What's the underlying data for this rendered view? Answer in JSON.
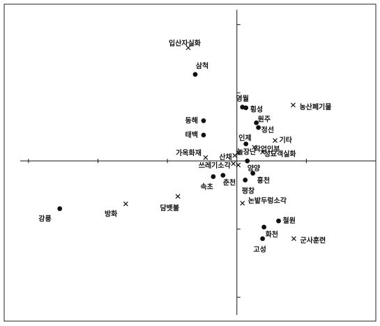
{
  "chart_data": {
    "type": "scatter",
    "title": "",
    "xlabel": "",
    "ylabel": "",
    "xlim": [
      -3.35,
      2.0
    ],
    "ylim": [
      -2.35,
      2.3
    ],
    "grid": false,
    "axes_through_origin": true,
    "series": [
      {
        "marker": "circle",
        "points": [
          {
            "label": "삼척",
            "x": -0.6,
            "y": 1.27
          },
          {
            "label": "영월",
            "x": 0.08,
            "y": 0.79
          },
          {
            "label": "횡성",
            "x": 0.13,
            "y": 0.78
          },
          {
            "label": "원주",
            "x": 0.28,
            "y": 0.56
          },
          {
            "label": "정선",
            "x": 0.31,
            "y": 0.49
          },
          {
            "label": "동해",
            "x": -0.48,
            "y": 0.59
          },
          {
            "label": "태백",
            "x": -0.48,
            "y": 0.38
          },
          {
            "label": "인제",
            "x": 0.13,
            "y": 0.25
          },
          {
            "label": "양양",
            "x": 0.15,
            "y": 0.0
          },
          {
            "label": "춘천",
            "x": -0.2,
            "y": -0.21
          },
          {
            "label": "속초",
            "x": -0.34,
            "y": -0.23
          },
          {
            "label": "홍천",
            "x": 0.23,
            "y": -0.18
          },
          {
            "label": "평창",
            "x": 0.12,
            "y": -0.28
          },
          {
            "label": "강릉",
            "x": -2.55,
            "y": -0.7
          },
          {
            "label": "철원",
            "x": 0.6,
            "y": -0.88
          },
          {
            "label": "화천",
            "x": 0.39,
            "y": -0.97
          },
          {
            "label": "고성",
            "x": 0.37,
            "y": -1.14
          }
        ]
      },
      {
        "marker": "x",
        "points": [
          {
            "label": "입산자실화",
            "x": -0.7,
            "y": 1.66
          },
          {
            "label": "농산폐기물",
            "x": 0.81,
            "y": 0.82
          },
          {
            "label": "기타",
            "x": 0.55,
            "y": 0.3
          },
          {
            "label": "작업인부",
            "x": 0.25,
            "y": 0.2
          },
          {
            "label": "성묘객실화",
            "x": 0.37,
            "y": 0.13
          },
          {
            "label": "놀장난",
            "x": 0.02,
            "y": 0.12
          },
          {
            "label": "가옥화재",
            "x": -0.45,
            "y": 0.05
          },
          {
            "label": "산채",
            "x": -0.03,
            "y": 0.08
          },
          {
            "label": "쓰레기소각",
            "x": -0.05,
            "y": -0.04
          },
          {
            "label": "기타2",
            "x": 0.02,
            "y": -0.06
          },
          {
            "label": "담뱃불",
            "x": -0.85,
            "y": -0.52
          },
          {
            "label": "방화",
            "x": -1.6,
            "y": -0.63
          },
          {
            "label": "논밭두렁소각",
            "x": 0.08,
            "y": -0.62
          },
          {
            "label": "군사훈련",
            "x": 0.82,
            "y": -1.14
          }
        ]
      }
    ],
    "visible_labels": [
      {
        "ref": "입산자실화",
        "text": "입산자실화",
        "anchor": "end",
        "dx": 18,
        "dy": -6
      },
      {
        "ref": "삼척",
        "text": "삼척",
        "anchor": "middle",
        "dx": 10,
        "dy": -12
      },
      {
        "ref": "영월",
        "text": "영월",
        "anchor": "middle",
        "dx": 0,
        "dy": -12
      },
      {
        "ref": "횡성",
        "text": "횡성",
        "anchor": "start",
        "dx": 6,
        "dy": 3
      },
      {
        "ref": "농산폐기물",
        "text": "농산폐기물",
        "anchor": "start",
        "dx": 9,
        "dy": 3
      },
      {
        "ref": "원주",
        "text": "원주",
        "anchor": "start",
        "dx": 2,
        "dy": -5
      },
      {
        "ref": "정선",
        "text": "정선",
        "anchor": "start",
        "dx": 4,
        "dy": 4
      },
      {
        "ref": "동해",
        "text": "동해",
        "anchor": "end",
        "dx": -8,
        "dy": 0
      },
      {
        "ref": "태백",
        "text": "태백",
        "anchor": "end",
        "dx": -8,
        "dy": 0
      },
      {
        "ref": "인제",
        "text": "인제",
        "anchor": "end",
        "dx": 8,
        "dy": -8
      },
      {
        "ref": "기타",
        "text": "기타",
        "anchor": "start",
        "dx": 6,
        "dy": 0
      },
      {
        "ref": "작업인부",
        "text": "작업인부",
        "anchor": "start",
        "dx": 0,
        "dy": 3
      },
      {
        "ref": "놀장난",
        "text": "놀장난",
        "anchor": "start",
        "dx": -2,
        "dy": -1
      },
      {
        "ref": "성묘객실화",
        "text": "성묘객실화",
        "anchor": "start",
        "dx": 2,
        "dy": 3
      },
      {
        "ref": "가옥화재",
        "text": "가옥화재",
        "anchor": "end",
        "dx": -6,
        "dy": -6
      },
      {
        "ref": "산채",
        "text": "산채",
        "anchor": "end",
        "dx": -4,
        "dy": 3
      },
      {
        "ref": "쓰레기소각",
        "text": "쓰레기소각",
        "anchor": "end",
        "dx": -4,
        "dy": 3
      },
      {
        "ref": "양양",
        "text": "양양",
        "anchor": "start",
        "dx": 0,
        "dy": 11
      },
      {
        "ref": "춘천",
        "text": "춘천",
        "anchor": "start",
        "dx": 0,
        "dy": 11
      },
      {
        "ref": "속초",
        "text": "속초",
        "anchor": "end",
        "dx": 0,
        "dy": 15
      },
      {
        "ref": "홍천",
        "text": "홍천",
        "anchor": "start",
        "dx": 6,
        "dy": 11
      },
      {
        "ref": "평창",
        "text": "평창",
        "anchor": "start",
        "dx": -5,
        "dy": 16
      },
      {
        "ref": "강릉",
        "text": "강릉",
        "anchor": "end",
        "dx": -12,
        "dy": 15
      },
      {
        "ref": "방화",
        "text": "방화",
        "anchor": "end",
        "dx": -12,
        "dy": 15
      },
      {
        "ref": "담뱃불",
        "text": "담뱃불",
        "anchor": "end",
        "dx": 2,
        "dy": 17
      },
      {
        "ref": "논밭두렁소각",
        "text": "논밭두렁소각",
        "anchor": "start",
        "dx": 8,
        "dy": -3
      },
      {
        "ref": "철원",
        "text": "철원",
        "anchor": "start",
        "dx": 6,
        "dy": 0
      },
      {
        "ref": "화천",
        "text": "화천",
        "anchor": "start",
        "dx": 2,
        "dy": 11
      },
      {
        "ref": "고성",
        "text": "고성",
        "anchor": "middle",
        "dx": -4,
        "dy": 16
      },
      {
        "ref": "군사훈련",
        "text": "군사훈련",
        "anchor": "start",
        "dx": 9,
        "dy": 3
      }
    ]
  }
}
